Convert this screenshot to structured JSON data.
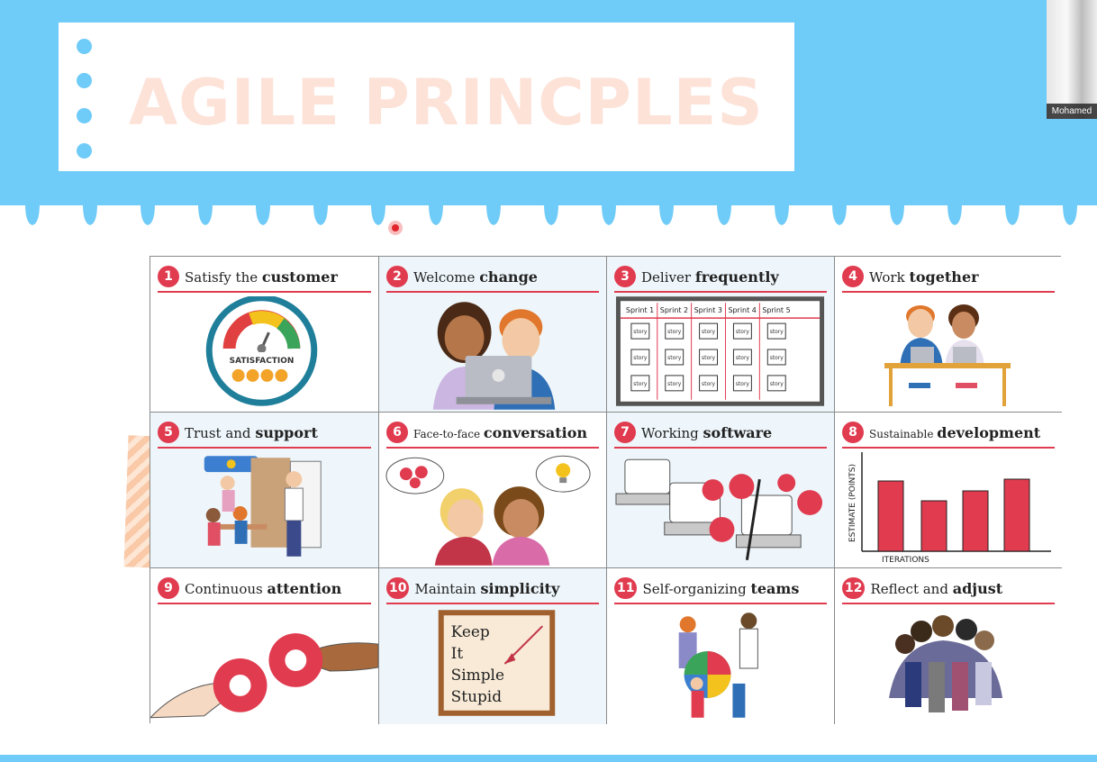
{
  "slide": {
    "title": "AGILE PRINCPLES",
    "colors": {
      "band": "#6fcbf8",
      "accent_red": "#e03b4f",
      "title_peach": "#fde2d8"
    }
  },
  "webcam": {
    "participant_name": "Mohamed"
  },
  "principles": [
    {
      "number": "1",
      "light": "Satisfy the",
      "bold": "customer",
      "illustration": "satisfaction-meter",
      "meter_label": "SATISFACTION"
    },
    {
      "number": "2",
      "light": "Welcome",
      "bold": "change",
      "illustration": "two-people-laptop"
    },
    {
      "number": "3",
      "light": "Deliver",
      "bold": "frequently",
      "illustration": "sprint-board",
      "sprints": [
        "Sprint 1",
        "Sprint 2",
        "Sprint 3",
        "Sprint 4",
        "Sprint 5"
      ],
      "card_label": "story"
    },
    {
      "number": "4",
      "light": "Work",
      "bold": "together",
      "illustration": "pair-at-desk"
    },
    {
      "number": "5",
      "light": "Trust and",
      "bold": "support",
      "illustration": "team-office"
    },
    {
      "number": "6",
      "light": "Face-to-face",
      "bold": "conversation",
      "illustration": "two-people-talking"
    },
    {
      "number": "7",
      "light": "Working",
      "bold": "software",
      "illustration": "laptops-lifting-weights"
    },
    {
      "number": "8",
      "light": "Sustainable",
      "bold": "development",
      "illustration": "bar-chart",
      "y_axis_label": "ESTIMATE (POINTS)",
      "x_axis_label": "ITERATIONS"
    },
    {
      "number": "9",
      "light": "Continuous",
      "bold": "attention",
      "illustration": "hands-with-gears"
    },
    {
      "number": "10",
      "light": "Maintain",
      "bold": "simplicity",
      "illustration": "kiss-sign",
      "kiss_lines": [
        "Keep",
        "It",
        "Simple",
        "Stupid"
      ]
    },
    {
      "number": "11",
      "light": "Self-organizing",
      "bold": "teams",
      "illustration": "team-puzzle"
    },
    {
      "number": "12",
      "light": "Reflect and",
      "bold": "adjust",
      "illustration": "team-huddle"
    }
  ]
}
